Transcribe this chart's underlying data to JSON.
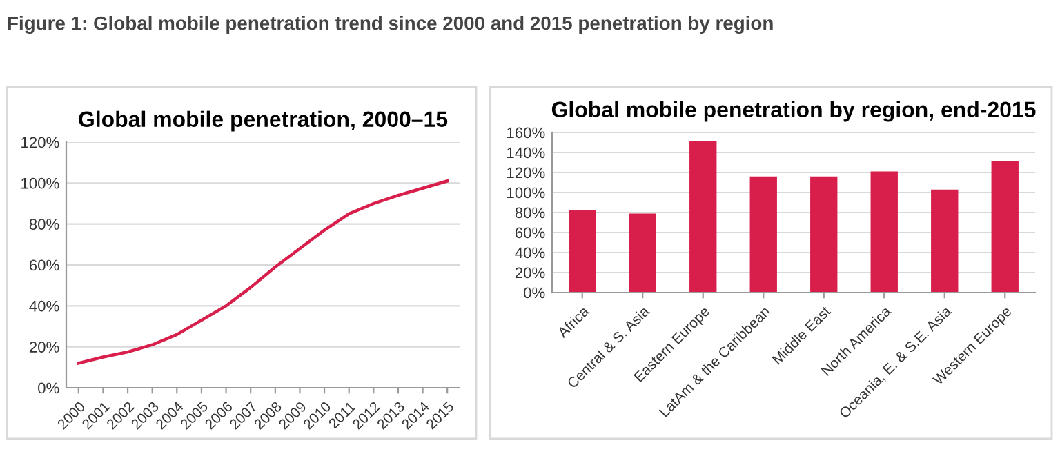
{
  "chart_data": [
    {
      "type": "line",
      "title": "Global mobile penetration, 2000–15",
      "annotations": [
        "Figure 1: Global mobile penetration trend since 2000 and 2015 penetration by region"
      ],
      "categories": [
        "2000",
        "2001",
        "2002",
        "2003",
        "2004",
        "2005",
        "2006",
        "2007",
        "2008",
        "2009",
        "2010",
        "2011",
        "2012",
        "2013",
        "2014",
        "2015"
      ],
      "values": [
        12,
        15,
        17.5,
        21,
        26,
        33,
        40,
        49,
        59,
        68,
        77,
        85,
        90,
        94,
        97.5,
        101
      ],
      "color": "#d81e4a",
      "ylim": [
        0,
        120
      ],
      "yticks": [
        {
          "value": 0,
          "label": "0%"
        },
        {
          "value": 20,
          "label": "20%"
        },
        {
          "value": 40,
          "label": "40%"
        },
        {
          "value": 60,
          "label": "60%"
        },
        {
          "value": 80,
          "label": "80%"
        },
        {
          "value": 100,
          "label": "100%"
        },
        {
          "value": 120,
          "label": "120%"
        }
      ],
      "grid": "y",
      "marker": "none",
      "line_style": "solid"
    },
    {
      "type": "bar",
      "title": "Global mobile penetration by region, end-2015",
      "categories": [
        "Africa",
        "Central & S. Asia",
        "Eastern Europe",
        "LatAm & the Caribbean",
        "Middle East",
        "North America",
        "Oceania, E. & S.E. Asia",
        "Western Europe"
      ],
      "values": [
        82,
        79,
        151,
        116,
        116,
        121,
        103,
        131
      ],
      "color": "#d81e4a",
      "ylim": [
        0,
        160
      ],
      "yticks": [
        {
          "value": 0,
          "label": "0%"
        },
        {
          "value": 20,
          "label": "20%"
        },
        {
          "value": 40,
          "label": "40%"
        },
        {
          "value": 60,
          "label": "60%"
        },
        {
          "value": 80,
          "label": "80%"
        },
        {
          "value": 100,
          "label": "100%"
        },
        {
          "value": 120,
          "label": "120%"
        },
        {
          "value": 140,
          "label": "140%"
        },
        {
          "value": 160,
          "label": "160%"
        }
      ],
      "grid": "y"
    }
  ]
}
